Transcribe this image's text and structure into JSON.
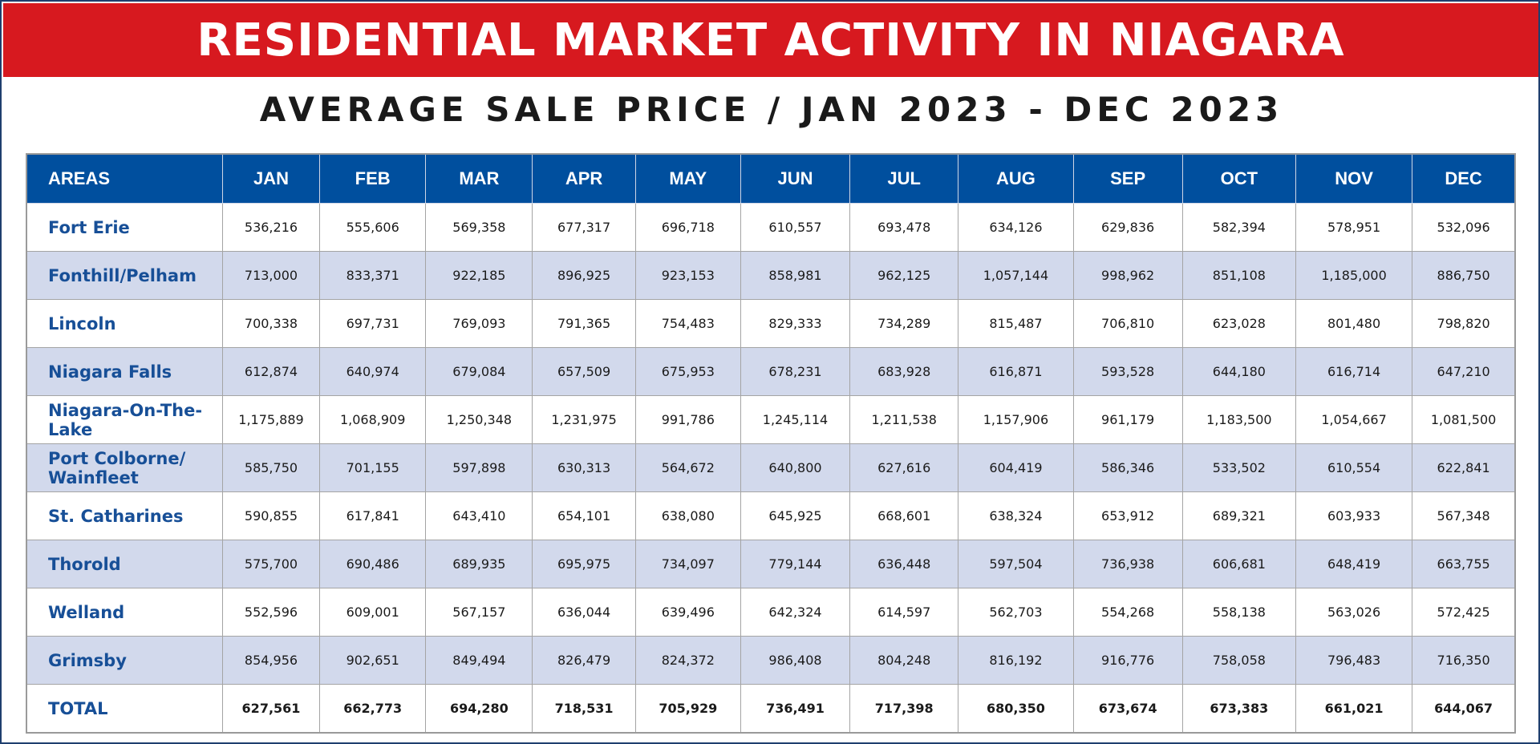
{
  "title": "RESIDENTIAL MARKET ACTIVITY IN NIAGARA",
  "subtitle": "AVERAGE SALE PRICE / JAN 2023 - DEC 2023",
  "colors": {
    "banner": "#d7191f",
    "header": "#004f9e",
    "stripe": "#d2d9ec",
    "area_text": "#174f97"
  },
  "chart_data": {
    "type": "table",
    "title": "RESIDENTIAL MARKET ACTIVITY IN NIAGARA",
    "subtitle": "AVERAGE SALE PRICE / JAN 2023 - DEC 2023",
    "columns": [
      "AREAS",
      "JAN",
      "FEB",
      "MAR",
      "APR",
      "MAY",
      "JUN",
      "JUL",
      "AUG",
      "SEP",
      "OCT",
      "NOV",
      "DEC"
    ],
    "rows": [
      {
        "area": "Fort Erie",
        "values": [
          "536,216",
          "555,606",
          "569,358",
          "677,317",
          "696,718",
          "610,557",
          "693,478",
          "634,126",
          "629,836",
          "582,394",
          "578,951",
          "532,096"
        ]
      },
      {
        "area": "Fonthill/Pelham",
        "values": [
          "713,000",
          "833,371",
          "922,185",
          "896,925",
          "923,153",
          "858,981",
          "962,125",
          "1,057,144",
          "998,962",
          "851,108",
          "1,185,000",
          "886,750"
        ]
      },
      {
        "area": "Lincoln",
        "values": [
          "700,338",
          "697,731",
          "769,093",
          "791,365",
          "754,483",
          "829,333",
          "734,289",
          "815,487",
          "706,810",
          "623,028",
          "801,480",
          "798,820"
        ]
      },
      {
        "area": "Niagara Falls",
        "values": [
          "612,874",
          "640,974",
          "679,084",
          "657,509",
          "675,953",
          "678,231",
          "683,928",
          "616,871",
          "593,528",
          "644,180",
          "616,714",
          "647,210"
        ]
      },
      {
        "area": "Niagara-On-The-Lake",
        "values": [
          "1,175,889",
          "1,068,909",
          "1,250,348",
          "1,231,975",
          "991,786",
          "1,245,114",
          "1,211,538",
          "1,157,906",
          "961,179",
          "1,183,500",
          "1,054,667",
          "1,081,500"
        ]
      },
      {
        "area": "Port Colborne/ Wainfleet",
        "values": [
          "585,750",
          "701,155",
          "597,898",
          "630,313",
          "564,672",
          "640,800",
          "627,616",
          "604,419",
          "586,346",
          "533,502",
          "610,554",
          "622,841"
        ]
      },
      {
        "area": "St. Catharines",
        "values": [
          "590,855",
          "617,841",
          "643,410",
          "654,101",
          "638,080",
          "645,925",
          "668,601",
          "638,324",
          "653,912",
          "689,321",
          "603,933",
          "567,348"
        ]
      },
      {
        "area": "Thorold",
        "values": [
          "575,700",
          "690,486",
          "689,935",
          "695,975",
          "734,097",
          "779,144",
          "636,448",
          "597,504",
          "736,938",
          "606,681",
          "648,419",
          "663,755"
        ]
      },
      {
        "area": "Welland",
        "values": [
          "552,596",
          "609,001",
          "567,157",
          "636,044",
          "639,496",
          "642,324",
          "614,597",
          "562,703",
          "554,268",
          "558,138",
          "563,026",
          "572,425"
        ]
      },
      {
        "area": "Grimsby",
        "values": [
          "854,956",
          "902,651",
          "849,494",
          "826,479",
          "824,372",
          "986,408",
          "804,248",
          "816,192",
          "916,776",
          "758,058",
          "796,483",
          "716,350"
        ]
      }
    ],
    "total": {
      "area": "TOTAL",
      "values": [
        "627,561",
        "662,773",
        "694,280",
        "718,531",
        "705,929",
        "736,491",
        "717,398",
        "680,350",
        "673,674",
        "673,383",
        "661,021",
        "644,067"
      ]
    }
  }
}
